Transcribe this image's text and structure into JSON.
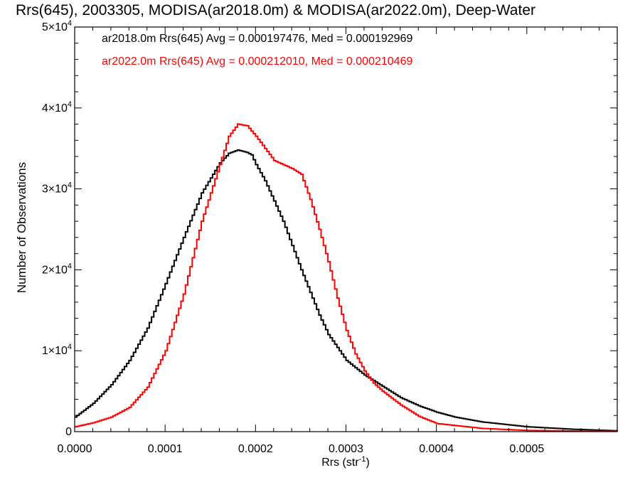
{
  "chart_data": {
    "type": "line",
    "title": "Rrs(645), 2003305, MODISA(ar2018.0m) & MODISA(ar2022.0m), Deep-Water",
    "xlabel": "Rrs (str",
    "xlabel_sup": "-1",
    "xlabel_end": ")",
    "ylabel": "Number of Observations",
    "xlim": [
      0.0,
      0.0006
    ],
    "ylim": [
      0,
      50000
    ],
    "x_ticks": [
      {
        "value": 0.0,
        "label": "0.0000"
      },
      {
        "value": 0.0001,
        "label": "0.0001"
      },
      {
        "value": 0.0002,
        "label": "0.0002"
      },
      {
        "value": 0.0003,
        "label": "0.0003"
      },
      {
        "value": 0.0004,
        "label": "0.0004"
      },
      {
        "value": 0.0005,
        "label": "0.0005"
      }
    ],
    "y_ticks": [
      {
        "value": 0,
        "mant": "0",
        "exp": ""
      },
      {
        "value": 10000,
        "mant": "1×10",
        "exp": "4"
      },
      {
        "value": 20000,
        "mant": "2×10",
        "exp": "4"
      },
      {
        "value": 30000,
        "mant": "3×10",
        "exp": "4"
      },
      {
        "value": 40000,
        "mant": "4×10",
        "exp": "4"
      },
      {
        "value": 50000,
        "mant": "5×10",
        "exp": "4"
      }
    ],
    "legend_placement": "top-left",
    "grid": false,
    "series": [
      {
        "name": "ar2018.0m",
        "legend": "ar2018.0m Rrs(645) Avg = 0.000197476, Med = 0.000192969",
        "color": "#000000",
        "x": [
          0.0,
          2e-05,
          4e-05,
          6e-05,
          8e-05,
          0.0001,
          0.00012,
          0.00014,
          0.00016,
          0.00017,
          0.00018,
          0.00019,
          0.000195,
          0.0002,
          0.00021,
          0.00022,
          0.00023,
          0.00024,
          0.00025,
          0.00026,
          0.00027,
          0.00028,
          0.0003,
          0.00032,
          0.00034,
          0.00036,
          0.00038,
          0.0004,
          0.00042,
          0.00045,
          0.0005,
          0.00055,
          0.0006
        ],
        "y": [
          1800,
          3500,
          5800,
          8800,
          12800,
          18300,
          24000,
          29500,
          33200,
          34400,
          34800,
          34500,
          34200,
          33000,
          31000,
          28500,
          26000,
          23000,
          20000,
          17200,
          14400,
          12000,
          8800,
          7000,
          5600,
          4200,
          3200,
          2400,
          1800,
          1200,
          600,
          300,
          100
        ]
      },
      {
        "name": "ar2022.0m",
        "legend": "ar2022.0m Rrs(645) Avg = 0.000212010, Med = 0.000210469",
        "color": "#ff0000",
        "x": [
          0.0,
          2e-05,
          4e-05,
          6e-05,
          8e-05,
          0.0001,
          0.00012,
          0.00014,
          0.00016,
          0.00017,
          0.00018,
          0.00019,
          0.0002,
          0.00021,
          0.00022,
          0.00023,
          0.00024,
          0.00025,
          0.00026,
          0.00027,
          0.00028,
          0.00029,
          0.0003,
          0.00031,
          0.00032,
          0.00033,
          0.00034,
          0.00036,
          0.00038,
          0.0004,
          0.00045,
          0.0005,
          0.00055,
          0.0006
        ],
        "y": [
          600,
          1100,
          1800,
          3000,
          5500,
          10000,
          17000,
          26000,
          33000,
          36500,
          38000,
          37800,
          36500,
          35000,
          33500,
          33000,
          32500,
          31800,
          28700,
          25000,
          21000,
          16500,
          12500,
          9600,
          7500,
          6000,
          5000,
          3300,
          1900,
          1000,
          400,
          150,
          80,
          40
        ]
      }
    ]
  }
}
